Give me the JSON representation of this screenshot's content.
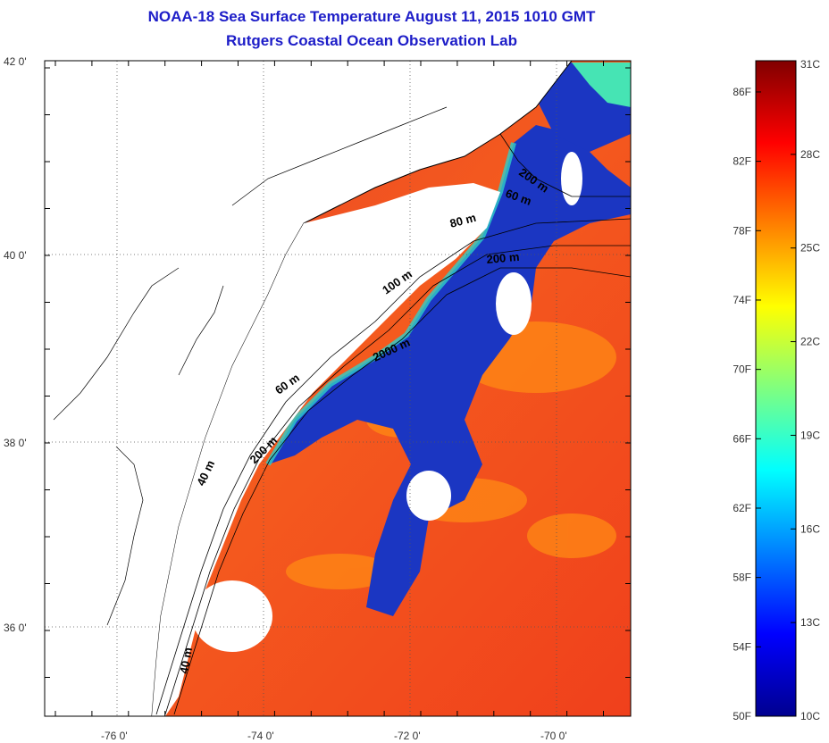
{
  "title": {
    "line1": "NOAA-18 Sea Surface Temperature August 11, 2015 1010 GMT",
    "line2": "Rutgers Coastal Ocean Observation Lab"
  },
  "map": {
    "lat_ticks": [
      {
        "value": 42,
        "label": "42 0'"
      },
      {
        "value": 40,
        "label": "40 0'"
      },
      {
        "value": 38,
        "label": "38 0'"
      },
      {
        "value": 36,
        "label": "36 0'"
      }
    ],
    "lon_ticks": [
      {
        "value": -76,
        "label": "-76 0'"
      },
      {
        "value": -74,
        "label": "-74 0'"
      },
      {
        "value": -72,
        "label": "-72 0'"
      },
      {
        "value": -70,
        "label": "-70 0'"
      }
    ],
    "lat_range": [
      35.0,
      42.0
    ],
    "lon_range": [
      -77.0,
      -69.0
    ],
    "isobath_labels": [
      "200 m",
      "60 m",
      "80 m",
      "200 m",
      "100 m",
      "2000 m",
      "60 m",
      "200 m",
      "40 m",
      "40 m"
    ],
    "colors": {
      "land": "#ffffff",
      "warm": "#f24a1a",
      "cold": "#1a2fbf",
      "coast_line": "#000000"
    }
  },
  "colorbar": {
    "celsius_labels": [
      "31C",
      "28C",
      "25C",
      "22C",
      "19C",
      "16C",
      "13C",
      "10C"
    ],
    "celsius_values": [
      31,
      28,
      25,
      22,
      19,
      16,
      13,
      10
    ],
    "fahrenheit_labels": [
      "86F",
      "82F",
      "78F",
      "74F",
      "70F",
      "66F",
      "62F",
      "58F",
      "54F",
      "50F"
    ],
    "fahrenheit_values": [
      86,
      82,
      78,
      74,
      70,
      66,
      62,
      58,
      54,
      50
    ],
    "range_c": [
      10,
      31
    ],
    "colormap": "jet"
  }
}
